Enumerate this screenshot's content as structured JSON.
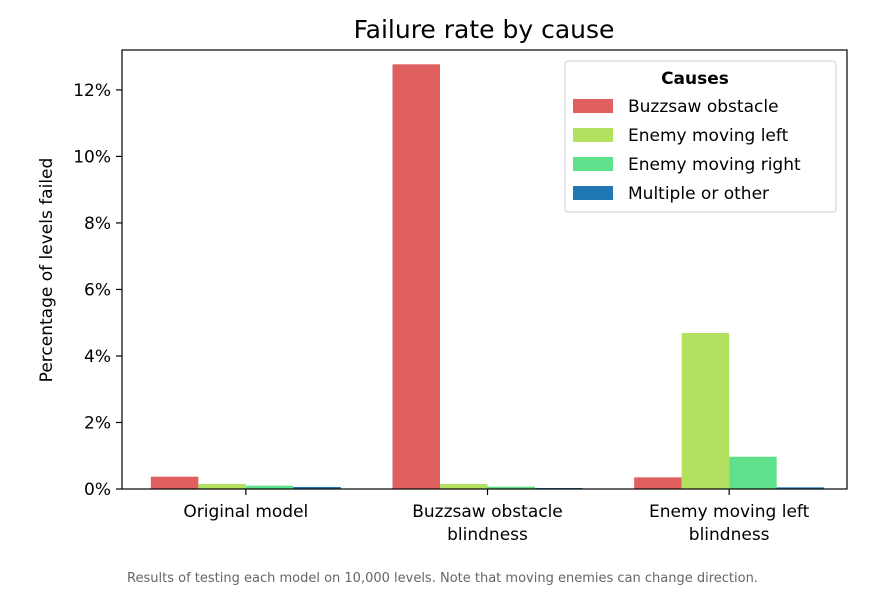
{
  "chart_data": {
    "type": "bar",
    "title": "Failure rate by cause",
    "xlabel": "",
    "ylabel": "Percentage of levels failed",
    "categories": [
      [
        "Original model"
      ],
      [
        "Buzzsaw obstacle",
        "blindness"
      ],
      [
        "Enemy moving left",
        "blindness"
      ]
    ],
    "ylim": [
      0,
      13.2
    ],
    "yticks": [
      0,
      2,
      4,
      6,
      8,
      10,
      12
    ],
    "ytick_labels": [
      "0%",
      "2%",
      "4%",
      "6%",
      "8%",
      "10%",
      "12%"
    ],
    "legend_title": "Causes",
    "legend_position": "top-right",
    "grid": false,
    "series": [
      {
        "name": "Buzzsaw obstacle",
        "color": "#e05f5f",
        "values": [
          0.37,
          12.77,
          0.35
        ]
      },
      {
        "name": "Enemy moving left",
        "color": "#b2e05f",
        "values": [
          0.15,
          0.15,
          4.69
        ]
      },
      {
        "name": "Enemy moving right",
        "color": "#5fe08a",
        "values": [
          0.1,
          0.07,
          0.97
        ]
      },
      {
        "name": "Multiple or other",
        "color": "#1f77b4",
        "values": [
          0.06,
          0.03,
          0.05
        ]
      }
    ]
  },
  "caption": "Results of testing each model on 10,000 levels. Note that moving enemies can change direction."
}
